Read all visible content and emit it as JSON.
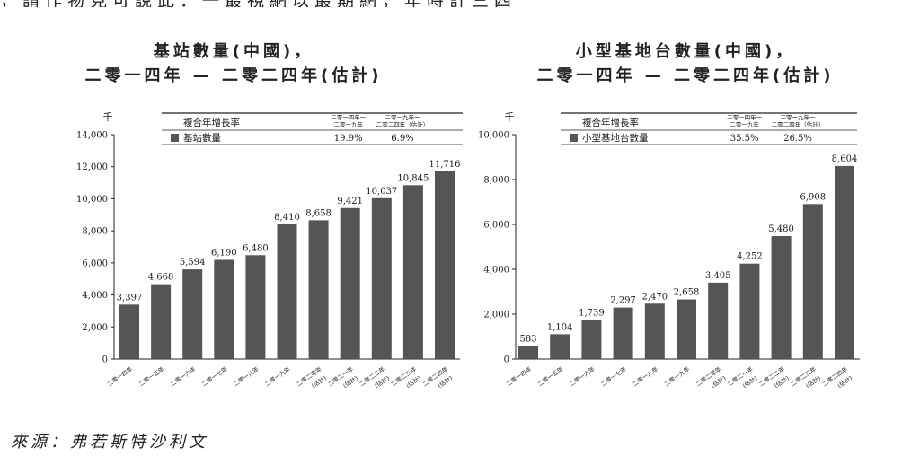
{
  "top_text": "，請作物見可說此：一最視網以最期網，年時計三四",
  "source": "來源：弗若斯特沙利文",
  "colors": {
    "bar": "#555555",
    "axis": "#222222"
  },
  "chart_data": [
    {
      "type": "bar",
      "title_line1": "基站數量(中國)，",
      "title_line2": "二零一四年 — 二零二四年(估計)",
      "unit": "千",
      "ylim": [
        0,
        14000
      ],
      "yticks": [
        0,
        2000,
        4000,
        6000,
        8000,
        10000,
        12000,
        14000
      ],
      "ytick_labels": [
        "0",
        "2,000",
        "4,000",
        "6,000",
        "8,000",
        "10,000",
        "12,000",
        "14,000"
      ],
      "categories": [
        [
          "二零一四年"
        ],
        [
          "二零一五年"
        ],
        [
          "二零一六年"
        ],
        [
          "二零一七年"
        ],
        [
          "二零一八年"
        ],
        [
          "二零一九年"
        ],
        [
          "二零二零年",
          "(估計)"
        ],
        [
          "二零二一年",
          "(估計)"
        ],
        [
          "二零二二年",
          "(估計)"
        ],
        [
          "二零二三年",
          "(估計)"
        ],
        [
          "二零二四年",
          "(估計)"
        ]
      ],
      "values": [
        3397,
        4668,
        5594,
        6190,
        6480,
        8410,
        8658,
        9421,
        10037,
        10845,
        11716
      ],
      "value_labels": [
        "3,397",
        "4,668",
        "5,594",
        "6,190",
        "6,480",
        "8,410",
        "8,658",
        "9,421",
        "10,037",
        "10,845",
        "11,716"
      ],
      "legend": {
        "header": "複合年增長率",
        "period1": [
          "二零一四年一",
          "二零一九年"
        ],
        "period2": [
          "二零一九年一",
          "二零二四年（估計）"
        ],
        "series": "基站數量",
        "cagr1": "19.9%",
        "cagr2": "6.9%"
      },
      "grid": false,
      "legend_placement": "top"
    },
    {
      "type": "bar",
      "title_line1": "小型基地台數量(中國)，",
      "title_line2": "二零一四年 — 二零二四年(估計)",
      "unit": "千",
      "ylim": [
        0,
        10000
      ],
      "yticks": [
        0,
        2000,
        4000,
        6000,
        8000,
        10000
      ],
      "ytick_labels": [
        "0",
        "2,000",
        "4,000",
        "6,000",
        "8,000",
        "10,000"
      ],
      "categories": [
        [
          "二零一四年"
        ],
        [
          "二零一五年"
        ],
        [
          "二零一六年"
        ],
        [
          "二零一七年"
        ],
        [
          "二零一八年"
        ],
        [
          "二零一九年"
        ],
        [
          "二零二零年",
          "(估計)"
        ],
        [
          "二零二一年",
          "(估計)"
        ],
        [
          "二零二二年",
          "(估計)"
        ],
        [
          "二零二三年",
          "(估計)"
        ],
        [
          "二零二四年",
          "(估計)"
        ]
      ],
      "values": [
        583,
        1104,
        1739,
        2297,
        2470,
        2658,
        3405,
        4252,
        5480,
        6908,
        8604
      ],
      "value_labels": [
        "583",
        "1,104",
        "1,739",
        "2,297",
        "2,470",
        "2,658",
        "3,405",
        "4,252",
        "5,480",
        "6,908",
        "8,604"
      ],
      "legend": {
        "header": "複合年增長率",
        "period1": [
          "二零一四年一",
          "二零一九年"
        ],
        "period2": [
          "二零一九年一",
          "二零二四年（估計）"
        ],
        "series": "小型基地台數量",
        "cagr1": "35.5%",
        "cagr2": "26.5%"
      },
      "grid": false,
      "legend_placement": "top"
    }
  ]
}
